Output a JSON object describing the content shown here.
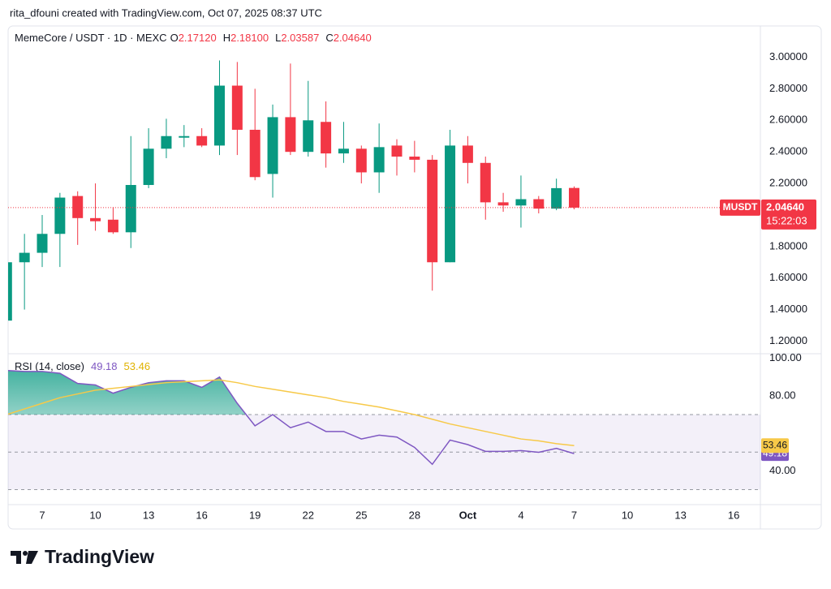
{
  "header": "rita_dfouni created with TradingView.com, Oct 07, 2025 08:37 UTC",
  "footer": "TradingView",
  "chart_data": [
    {
      "type": "candlestick",
      "title": "MemeCore / USDT · 1D · MEXC",
      "ohlc_legend": [
        {
          "key": "O",
          "label": "2.17120"
        },
        {
          "key": "H",
          "label": "2.18100"
        },
        {
          "key": "L",
          "label": "2.03587"
        },
        {
          "key": "C",
          "label": "2.04640"
        }
      ],
      "categories": [
        null,
        null,
        "7",
        null,
        null,
        "10",
        null,
        null,
        "13",
        null,
        null,
        "16",
        null,
        null,
        "19",
        null,
        null,
        "22",
        null,
        null,
        "25",
        null,
        null,
        "28",
        null,
        null,
        "Oct",
        null,
        null,
        "4",
        null,
        null,
        "7",
        null,
        null,
        "10",
        null,
        null,
        "13",
        null,
        null,
        "16",
        null
      ],
      "open": [
        1.33,
        1.7,
        1.76,
        1.88,
        2.12,
        1.98,
        1.97,
        1.89,
        2.19,
        2.42,
        2.49,
        2.5,
        2.44,
        2.82,
        2.54,
        2.26,
        2.62,
        2.4,
        2.59,
        2.39,
        2.42,
        2.27,
        2.44,
        2.37,
        2.35,
        1.7,
        2.44,
        2.33,
        2.08,
        2.06,
        2.1,
        2.04,
        2.1712,
        null,
        null,
        null,
        null,
        null,
        null,
        null,
        null,
        null,
        null
      ],
      "high": [
        1.7,
        1.88,
        2.0,
        2.14,
        2.15,
        2.2,
        2.05,
        2.5,
        2.55,
        2.61,
        2.57,
        2.55,
        2.98,
        2.97,
        2.8,
        2.7,
        2.96,
        2.85,
        2.72,
        2.59,
        2.44,
        2.58,
        2.48,
        2.47,
        2.38,
        2.54,
        2.5,
        2.37,
        2.14,
        2.25,
        2.12,
        2.23,
        2.181,
        null,
        null,
        null,
        null,
        null,
        null,
        null,
        null,
        null,
        null
      ],
      "low": [
        1.33,
        1.4,
        1.67,
        1.67,
        1.81,
        1.9,
        1.88,
        1.79,
        2.17,
        2.36,
        2.43,
        2.43,
        2.38,
        2.38,
        2.22,
        2.11,
        2.38,
        2.37,
        2.3,
        2.33,
        2.2,
        2.14,
        2.25,
        2.27,
        1.52,
        1.7,
        2.2,
        1.97,
        2.02,
        1.92,
        2.01,
        2.03,
        2.03587,
        null,
        null,
        null,
        null,
        null,
        null,
        null,
        null,
        null,
        null
      ],
      "close": [
        1.7,
        1.76,
        1.88,
        2.11,
        1.98,
        1.96,
        1.89,
        2.19,
        2.42,
        2.5,
        2.5,
        2.44,
        2.82,
        2.54,
        2.24,
        2.62,
        2.4,
        2.6,
        2.39,
        2.42,
        2.27,
        2.43,
        2.37,
        2.35,
        1.7,
        2.44,
        2.33,
        2.08,
        2.06,
        2.1,
        2.04,
        2.17,
        2.0464,
        null,
        null,
        null,
        null,
        null,
        null,
        null,
        null,
        null,
        null
      ],
      "up_color": "#089981",
      "down_color": "#f23645",
      "ylim": [
        1.12,
        3.08
      ],
      "yticks": [
        {
          "value": 1.2,
          "label": "1.20000"
        },
        {
          "value": 1.4,
          "label": "1.40000"
        },
        {
          "value": 1.6,
          "label": "1.60000"
        },
        {
          "value": 1.8,
          "label": "1.80000"
        },
        {
          "value": 2.2,
          "label": "2.20000"
        },
        {
          "value": 2.4,
          "label": "2.40000"
        },
        {
          "value": 2.6,
          "label": "2.60000"
        },
        {
          "value": 2.8,
          "label": "2.80000"
        },
        {
          "value": 3.0,
          "label": "3.00000"
        }
      ],
      "last_price": {
        "symbol": "MUSDT",
        "value": 2.0464,
        "label": "2.04640",
        "countdown": "15:22:03"
      },
      "grid": false
    },
    {
      "type": "line",
      "title": "RSI (14, close)",
      "series": [
        {
          "color": "#7e57c2",
          "values": [
            93.5,
            93,
            93,
            92,
            86.6,
            85.8,
            81.4,
            84.5,
            87,
            88,
            88,
            84.5,
            90,
            76,
            64,
            70,
            63,
            66,
            61,
            61,
            57,
            59,
            58,
            52.5,
            43.5,
            56.4,
            54,
            50.4,
            50.4,
            50.8,
            49.9,
            52,
            49.18,
            null,
            null,
            null,
            null,
            null,
            null,
            null,
            null,
            null,
            null
          ]
        },
        {
          "color": "#f7c948",
          "values": [
            70,
            73,
            76,
            79,
            81,
            83,
            84,
            85,
            86,
            87,
            87.5,
            88,
            88.5,
            87,
            85,
            83.5,
            82,
            80.5,
            79,
            77,
            75.5,
            74,
            72,
            70,
            67.5,
            65,
            63,
            61,
            59,
            57,
            56,
            54.5,
            53.46,
            null,
            null,
            null,
            null,
            null,
            null,
            null,
            null,
            null,
            null
          ]
        }
      ],
      "band_lines": [
        70,
        50,
        30
      ],
      "overbought_color": "#089981",
      "ylim": [
        22,
        102
      ],
      "yticks": [
        {
          "value": 40,
          "label": "40.00"
        },
        {
          "value": 80,
          "label": "80.00"
        },
        {
          "value": 100,
          "label": "100.00"
        }
      ],
      "grid": false
    }
  ]
}
